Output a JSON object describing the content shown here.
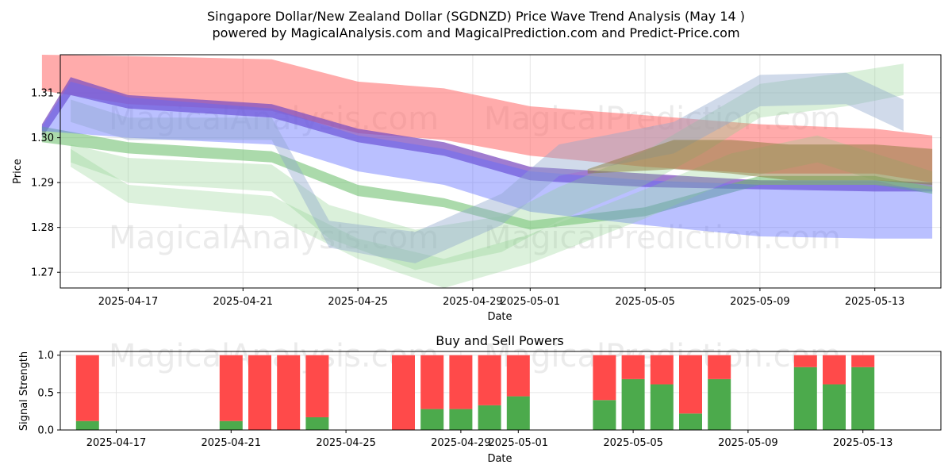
{
  "title_line1": "Singapore Dollar/New Zealand Dollar (SGDNZD) Price Wave Trend Analysis (May 14 )",
  "title_line2": "powered by MagicalAnalysis.com and MagicalPrediction.com and Predict-Price.com",
  "watermarks": [
    "MagicalAnalysis.com",
    "MagicalPrediction.com"
  ],
  "chart_data": [
    {
      "type": "area",
      "title": "",
      "xlabel": "Date",
      "ylabel": "Price",
      "x_range": [
        "2025-04-14",
        "2025-05-15"
      ],
      "ylim": [
        1.2665,
        1.3185
      ],
      "yticks": [
        1.27,
        1.28,
        1.29,
        1.3,
        1.31
      ],
      "ytick_labels": [
        "1.27",
        "1.28",
        "1.29",
        "1.30",
        "1.31"
      ],
      "xticks": [
        "2025-04-17",
        "2025-04-21",
        "2025-04-25",
        "2025-04-29",
        "2025-05-01",
        "2025-05-05",
        "2025-05-09",
        "2025-05-13"
      ],
      "grid": true,
      "series": [
        {
          "name": "Red wave",
          "color": "#ff6666",
          "opacity": 0.55,
          "x": [
            "2025-04-14",
            "2025-04-17",
            "2025-04-22",
            "2025-04-25",
            "2025-04-28",
            "2025-05-01",
            "2025-05-05",
            "2025-05-09",
            "2025-05-13",
            "2025-05-15"
          ],
          "upper": [
            1.3185,
            1.3182,
            1.3175,
            1.3125,
            1.311,
            1.307,
            1.305,
            1.303,
            1.302,
            1.3005
          ],
          "lower": [
            1.3105,
            1.3075,
            1.306,
            1.301,
            1.2995,
            1.296,
            1.2935,
            1.292,
            1.292,
            1.29
          ]
        },
        {
          "name": "Purple wave",
          "color": "#8050c0",
          "opacity": 0.75,
          "x": [
            "2025-04-14",
            "2025-04-15",
            "2025-04-17",
            "2025-04-22",
            "2025-04-25",
            "2025-04-28",
            "2025-05-01",
            "2025-05-05",
            "2025-05-09",
            "2025-05-13",
            "2025-05-15"
          ],
          "upper": [
            1.303,
            1.3135,
            1.3095,
            1.3075,
            1.302,
            1.299,
            1.2935,
            1.292,
            1.2905,
            1.2905,
            1.29
          ],
          "lower": [
            1.3,
            1.3095,
            1.3065,
            1.3045,
            1.299,
            1.296,
            1.2905,
            1.289,
            1.2885,
            1.288,
            1.288
          ]
        },
        {
          "name": "Green wave",
          "color": "#66bb66",
          "opacity": 0.55,
          "x": [
            "2025-04-14",
            "2025-04-17",
            "2025-04-22",
            "2025-04-25",
            "2025-04-28",
            "2025-05-01",
            "2025-05-05",
            "2025-05-09",
            "2025-05-13",
            "2025-05-15"
          ],
          "upper": [
            1.3025,
            1.299,
            1.297,
            1.2895,
            1.2865,
            1.2815,
            1.2845,
            1.2915,
            1.2915,
            1.289
          ],
          "lower": [
            1.299,
            1.2965,
            1.2945,
            1.287,
            1.2845,
            1.2795,
            1.2825,
            1.2895,
            1.2895,
            1.2875
          ]
        },
        {
          "name": "Blue wave",
          "color": "#5a6aff",
          "opacity": 0.42,
          "x": [
            "2025-04-14",
            "2025-04-15",
            "2025-04-17",
            "2025-04-22",
            "2025-04-25",
            "2025-04-28",
            "2025-05-01",
            "2025-05-05",
            "2025-05-09",
            "2025-05-13",
            "2025-05-15"
          ],
          "upper": [
            1.3025,
            1.3125,
            1.309,
            1.3065,
            1.3005,
            1.2975,
            1.2925,
            1.2905,
            1.2895,
            1.2895,
            1.2885
          ],
          "lower": [
            1.3015,
            1.301,
            1.3,
            1.2985,
            1.2925,
            1.2895,
            1.2835,
            1.2805,
            1.278,
            1.2775,
            1.2775
          ]
        },
        {
          "name": "Light green wave 1",
          "color": "#8ccf8c",
          "opacity": 0.32,
          "x": [
            "2025-04-15",
            "2025-04-17",
            "2025-04-22",
            "2025-04-24",
            "2025-04-27",
            "2025-04-30",
            "2025-05-02",
            "2025-05-05",
            "2025-05-07",
            "2025-05-09",
            "2025-05-12",
            "2025-05-14"
          ],
          "upper": [
            1.2985,
            1.2955,
            1.294,
            1.285,
            1.2795,
            1.2825,
            1.289,
            1.297,
            1.3045,
            1.312,
            1.3145,
            1.3165
          ],
          "lower": [
            1.2945,
            1.29,
            1.288,
            1.2775,
            1.2705,
            1.2745,
            1.2815,
            1.2895,
            1.2965,
            1.3045,
            1.307,
            1.3095
          ]
        },
        {
          "name": "Light green wave 2",
          "color": "#8ccf8c",
          "opacity": 0.3,
          "x": [
            "2025-04-15",
            "2025-04-17",
            "2025-04-22",
            "2025-04-25",
            "2025-04-28",
            "2025-05-01",
            "2025-05-05",
            "2025-05-08",
            "2025-05-11",
            "2025-05-13",
            "2025-05-15"
          ],
          "upper": [
            1.2975,
            1.2895,
            1.287,
            1.2775,
            1.273,
            1.2785,
            1.2885,
            1.2965,
            1.3005,
            1.2965,
            1.2925
          ],
          "lower": [
            1.2935,
            1.2855,
            1.2825,
            1.273,
            1.2665,
            1.272,
            1.282,
            1.2905,
            1.2945,
            1.2905,
            1.2875
          ]
        },
        {
          "name": "Steel blue wave",
          "color": "#8ea8cc",
          "opacity": 0.42,
          "x": [
            "2025-04-15",
            "2025-04-17",
            "2025-04-22",
            "2025-04-24",
            "2025-04-27",
            "2025-04-30",
            "2025-05-02",
            "2025-05-06",
            "2025-05-09",
            "2025-05-12",
            "2025-05-14"
          ],
          "upper": [
            1.3085,
            1.3045,
            1.3045,
            1.2815,
            1.279,
            1.2875,
            1.2985,
            1.3035,
            1.314,
            1.3145,
            1.3085
          ],
          "lower": [
            1.3035,
            1.2995,
            1.2995,
            1.2755,
            1.272,
            1.2805,
            1.2915,
            1.2965,
            1.307,
            1.3075,
            1.3015
          ]
        },
        {
          "name": "Olive band",
          "color": "#8a7a3a",
          "opacity": 0.5,
          "x": [
            "2025-05-03",
            "2025-05-06",
            "2025-05-08",
            "2025-05-10",
            "2025-05-13",
            "2025-05-15"
          ],
          "upper": [
            1.293,
            1.2995,
            1.2995,
            1.2985,
            1.2985,
            1.2975
          ],
          "lower": [
            1.292,
            1.293,
            1.292,
            1.2905,
            1.2905,
            1.2895
          ]
        }
      ]
    },
    {
      "type": "bar",
      "stacked": true,
      "title": "Buy and Sell Powers",
      "xlabel": "Date",
      "ylabel": "Signal Strength",
      "ylim": [
        0,
        1.05
      ],
      "yticks": [
        0.0,
        0.5,
        1.0
      ],
      "ytick_labels": [
        "0.0",
        "0.5",
        "1.0"
      ],
      "xticks": [
        "2025-04-17",
        "2025-04-21",
        "2025-04-25",
        "2025-04-29",
        "2025-05-01",
        "2025-05-05",
        "2025-05-09",
        "2025-05-13"
      ],
      "grid": true,
      "series_names": [
        "Buy",
        "Sell"
      ],
      "colors": {
        "buy": "#4caa4c",
        "sell": "#ff4a4a"
      },
      "categories": [
        "2025-04-16",
        "2025-04-21",
        "2025-04-22",
        "2025-04-23",
        "2025-04-24",
        "2025-04-27",
        "2025-04-28",
        "2025-04-29",
        "2025-04-30",
        "2025-05-01",
        "2025-05-04",
        "2025-05-05",
        "2025-05-06",
        "2025-05-07",
        "2025-05-08",
        "2025-05-11",
        "2025-05-12",
        "2025-05-13"
      ],
      "buy": [
        0.12,
        0.12,
        0.0,
        0.0,
        0.17,
        0.0,
        0.28,
        0.28,
        0.33,
        0.45,
        0.4,
        0.68,
        0.61,
        0.22,
        0.68,
        0.84,
        0.61,
        0.84
      ],
      "sell": [
        0.88,
        0.88,
        1.0,
        1.0,
        0.83,
        1.0,
        0.72,
        0.72,
        0.67,
        0.55,
        0.6,
        0.32,
        0.39,
        0.78,
        0.32,
        0.16,
        0.39,
        0.16
      ]
    }
  ]
}
